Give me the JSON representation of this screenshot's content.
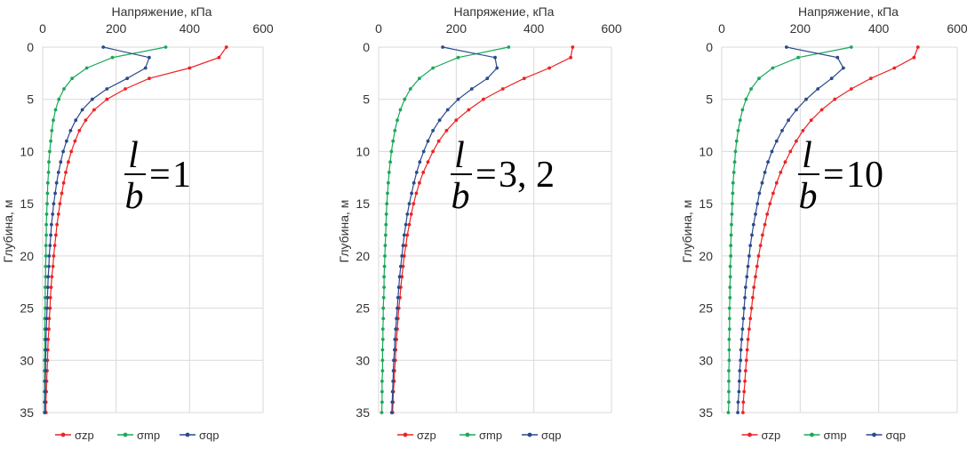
{
  "chart_data": [
    {
      "type": "line",
      "title": "",
      "xlabel": "Напряжение, кПа",
      "ylabel": "Глубина, м",
      "xlim": [
        0,
        600
      ],
      "ylim": [
        0,
        35
      ],
      "x_axis_position": "top",
      "y_axis_inverted": true,
      "grid": true,
      "legend_position": "bottom",
      "x_ticks": [
        "0",
        "200",
        "400",
        "600"
      ],
      "y_ticks": [
        "0",
        "5",
        "10",
        "15",
        "20",
        "25",
        "30",
        "35"
      ],
      "annotation": {
        "numerator": "l",
        "denominator": "b",
        "value": "1"
      },
      "series": [
        {
          "name": "σzp",
          "color": "#ee2222",
          "x": [
            500,
            480,
            400,
            290,
            225,
            175,
            140,
            117,
            100,
            88,
            78,
            70,
            63,
            57,
            52,
            47,
            43,
            39,
            36,
            33,
            30,
            28,
            25,
            23,
            21,
            20,
            18,
            17,
            15,
            14,
            13,
            12,
            11,
            10,
            9,
            9
          ],
          "y": [
            0,
            1,
            2,
            3,
            4,
            5,
            6,
            7,
            8,
            9,
            10,
            11,
            12,
            13,
            14,
            15,
            16,
            17,
            18,
            19,
            20,
            21,
            22,
            23,
            24,
            25,
            26,
            27,
            28,
            29,
            30,
            31,
            32,
            33,
            34,
            35
          ]
        },
        {
          "name": "σmp",
          "color": "#1aa85a",
          "x": [
            335,
            190,
            120,
            80,
            58,
            44,
            35,
            29,
            25,
            22,
            19,
            17,
            16,
            14,
            13,
            12,
            11,
            10,
            10,
            9,
            9,
            8,
            8,
            7,
            7,
            7,
            6,
            6,
            6,
            6,
            5,
            5,
            5,
            5,
            5,
            5
          ],
          "y": [
            0,
            1,
            2,
            3,
            4,
            5,
            6,
            7,
            8,
            9,
            10,
            11,
            12,
            13,
            14,
            15,
            16,
            17,
            18,
            19,
            20,
            21,
            22,
            23,
            24,
            25,
            26,
            27,
            28,
            29,
            30,
            31,
            32,
            33,
            34,
            35
          ]
        },
        {
          "name": "σqp",
          "color": "#2a4a8c",
          "x": [
            165,
            290,
            280,
            230,
            175,
            135,
            108,
            90,
            76,
            65,
            56,
            49,
            43,
            38,
            34,
            30,
            27,
            24,
            22,
            20,
            18,
            17,
            15,
            14,
            13,
            12,
            11,
            10,
            9,
            9,
            8,
            8,
            7,
            7,
            6,
            6
          ],
          "y": [
            0,
            1,
            2,
            3,
            4,
            5,
            6,
            7,
            8,
            9,
            10,
            11,
            12,
            13,
            14,
            15,
            16,
            17,
            18,
            19,
            20,
            21,
            22,
            23,
            24,
            25,
            26,
            27,
            28,
            29,
            30,
            31,
            32,
            33,
            34,
            35
          ]
        }
      ]
    },
    {
      "type": "line",
      "title": "",
      "xlabel": "Напряжение, кПа",
      "ylabel": "Глубина, м",
      "xlim": [
        0,
        600
      ],
      "ylim": [
        0,
        35
      ],
      "x_axis_position": "top",
      "y_axis_inverted": true,
      "grid": true,
      "legend_position": "bottom",
      "x_ticks": [
        "0",
        "200",
        "400",
        "600"
      ],
      "y_ticks": [
        "0",
        "5",
        "10",
        "15",
        "20",
        "25",
        "30",
        "35"
      ],
      "annotation": {
        "numerator": "l",
        "denominator": "b",
        "value": "3, 2"
      },
      "series": [
        {
          "name": "σzp",
          "color": "#ee2222",
          "x": [
            500,
            495,
            440,
            375,
            320,
            270,
            232,
            200,
            175,
            155,
            140,
            127,
            115,
            105,
            97,
            90,
            84,
            79,
            74,
            70,
            66,
            63,
            60,
            57,
            55,
            52,
            50,
            48,
            46,
            44,
            43,
            41,
            40,
            38,
            37,
            36
          ],
          "y": [
            0,
            1,
            2,
            3,
            4,
            5,
            6,
            7,
            8,
            9,
            10,
            11,
            12,
            13,
            14,
            15,
            16,
            17,
            18,
            19,
            20,
            21,
            22,
            23,
            24,
            25,
            26,
            27,
            28,
            29,
            30,
            31,
            32,
            33,
            34,
            35
          ]
        },
        {
          "name": "σmp",
          "color": "#1aa85a",
          "x": [
            335,
            205,
            140,
            105,
            82,
            67,
            56,
            48,
            42,
            37,
            33,
            30,
            27,
            25,
            23,
            21,
            20,
            19,
            18,
            17,
            16,
            15,
            14,
            14,
            13,
            12,
            12,
            11,
            11,
            10,
            10,
            10,
            9,
            9,
            9,
            8
          ],
          "y": [
            0,
            1,
            2,
            3,
            4,
            5,
            6,
            7,
            8,
            9,
            10,
            11,
            12,
            13,
            14,
            15,
            16,
            17,
            18,
            19,
            20,
            21,
            22,
            23,
            24,
            25,
            26,
            27,
            28,
            29,
            30,
            31,
            32,
            33,
            34,
            35
          ]
        },
        {
          "name": "σqp",
          "color": "#2a4a8c",
          "x": [
            165,
            300,
            305,
            280,
            240,
            205,
            178,
            157,
            140,
            127,
            116,
            106,
            98,
            91,
            85,
            79,
            74,
            70,
            66,
            63,
            60,
            57,
            54,
            52,
            50,
            48,
            46,
            44,
            42,
            41,
            39,
            38,
            37,
            36,
            35,
            34
          ],
          "y": [
            0,
            1,
            2,
            3,
            4,
            5,
            6,
            7,
            8,
            9,
            10,
            11,
            12,
            13,
            14,
            15,
            16,
            17,
            18,
            19,
            20,
            21,
            22,
            23,
            24,
            25,
            26,
            27,
            28,
            29,
            30,
            31,
            32,
            33,
            34,
            35
          ]
        }
      ]
    },
    {
      "type": "line",
      "title": "",
      "xlabel": "Напряжение, кПа",
      "ylabel": "Глубина, м",
      "xlim": [
        0,
        600
      ],
      "ylim": [
        0,
        35
      ],
      "x_axis_position": "top",
      "y_axis_inverted": true,
      "grid": true,
      "legend_position": "bottom",
      "x_ticks": [
        "0",
        "200",
        "400",
        "600"
      ],
      "y_ticks": [
        "0",
        "5",
        "10",
        "15",
        "20",
        "25",
        "30",
        "35"
      ],
      "annotation": {
        "numerator": "l",
        "denominator": "b",
        "value": "10"
      },
      "series": [
        {
          "name": "σzp",
          "color": "#ee2222",
          "x": [
            500,
            490,
            440,
            380,
            330,
            288,
            255,
            228,
            207,
            190,
            175,
            162,
            150,
            140,
            131,
            123,
            116,
            110,
            104,
            99,
            94,
            90,
            86,
            82,
            79,
            76,
            73,
            70,
            67,
            65,
            63,
            61,
            59,
            57,
            55,
            54
          ],
          "y": [
            0,
            1,
            2,
            3,
            4,
            5,
            6,
            7,
            8,
            9,
            10,
            11,
            12,
            13,
            14,
            15,
            16,
            17,
            18,
            19,
            20,
            21,
            22,
            23,
            24,
            25,
            26,
            27,
            28,
            29,
            30,
            31,
            32,
            33,
            34,
            35
          ]
        },
        {
          "name": "σmp",
          "color": "#1aa85a",
          "x": [
            330,
            195,
            130,
            95,
            75,
            62,
            53,
            47,
            42,
            38,
            35,
            33,
            31,
            29,
            28,
            27,
            26,
            25,
            24,
            23,
            23,
            22,
            22,
            21,
            21,
            20,
            20,
            20,
            19,
            19,
            19,
            18,
            18,
            18,
            18,
            17
          ],
          "y": [
            0,
            1,
            2,
            3,
            4,
            5,
            6,
            7,
            8,
            9,
            10,
            11,
            12,
            13,
            14,
            15,
            16,
            17,
            18,
            19,
            20,
            21,
            22,
            23,
            24,
            25,
            26,
            27,
            28,
            29,
            30,
            31,
            32,
            33,
            34,
            35
          ]
        },
        {
          "name": "σqp",
          "color": "#2a4a8c",
          "x": [
            165,
            295,
            310,
            280,
            245,
            215,
            190,
            170,
            154,
            140,
            128,
            118,
            110,
            103,
            96,
            91,
            86,
            81,
            77,
            73,
            70,
            67,
            64,
            61,
            59,
            57,
            55,
            53,
            51,
            49,
            48,
            46,
            45,
            44,
            42,
            41
          ],
          "y": [
            0,
            1,
            2,
            3,
            4,
            5,
            6,
            7,
            8,
            9,
            10,
            11,
            12,
            13,
            14,
            15,
            16,
            17,
            18,
            19,
            20,
            21,
            22,
            23,
            24,
            25,
            26,
            27,
            28,
            29,
            30,
            31,
            32,
            33,
            34,
            35
          ]
        }
      ]
    }
  ]
}
